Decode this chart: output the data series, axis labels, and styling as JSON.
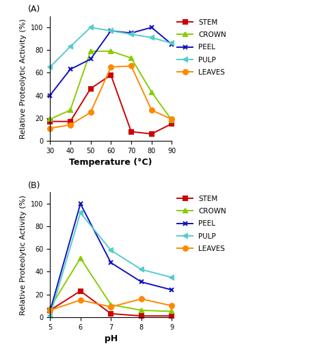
{
  "panel_A": {
    "x": [
      30,
      40,
      50,
      60,
      70,
      80,
      90
    ],
    "stem": [
      17,
      17,
      46,
      58,
      8,
      6,
      15
    ],
    "crown": [
      19,
      27,
      79,
      79,
      73,
      43,
      18
    ],
    "peel": [
      40,
      63,
      72,
      97,
      95,
      100,
      85
    ],
    "pulp": [
      65,
      83,
      100,
      97,
      94,
      91,
      86
    ],
    "leaves": [
      11,
      14,
      25,
      65,
      66,
      27,
      19
    ],
    "xlabel": "Temperature (°C)",
    "ylabel": "Relative Proteolytic Activity (%)",
    "label": "(A)"
  },
  "panel_B": {
    "x": [
      5,
      6,
      7,
      8,
      9
    ],
    "stem": [
      6,
      23,
      3,
      1,
      1
    ],
    "crown": [
      8,
      52,
      11,
      6,
      5
    ],
    "peel": [
      5,
      100,
      48,
      31,
      24
    ],
    "pulp": [
      1,
      92,
      59,
      42,
      35
    ],
    "leaves": [
      6,
      15,
      9,
      16,
      10
    ],
    "xlabel": "pH",
    "ylabel": "Relative Proteolytic Activity (%)",
    "label": "(B)"
  },
  "series": [
    "stem",
    "crown",
    "peel",
    "pulp",
    "leaves"
  ],
  "legend_labels": [
    "STEM",
    "CROWN",
    "PEEL",
    "PULP",
    "LEAVES"
  ],
  "colors": {
    "stem": "#cc0000",
    "crown": "#88cc00",
    "peel": "#1111bb",
    "pulp": "#55cccc",
    "leaves": "#ff8800"
  },
  "markers": {
    "stem": "s",
    "crown": "^",
    "peel": "x",
    "pulp": "<",
    "leaves": "o"
  },
  "ylim": [
    0,
    110
  ],
  "yticks": [
    0,
    20,
    40,
    60,
    80,
    100
  ],
  "title_fontsize": 9,
  "axis_label_fontsize": 8,
  "tick_fontsize": 7,
  "legend_fontsize": 7.5
}
